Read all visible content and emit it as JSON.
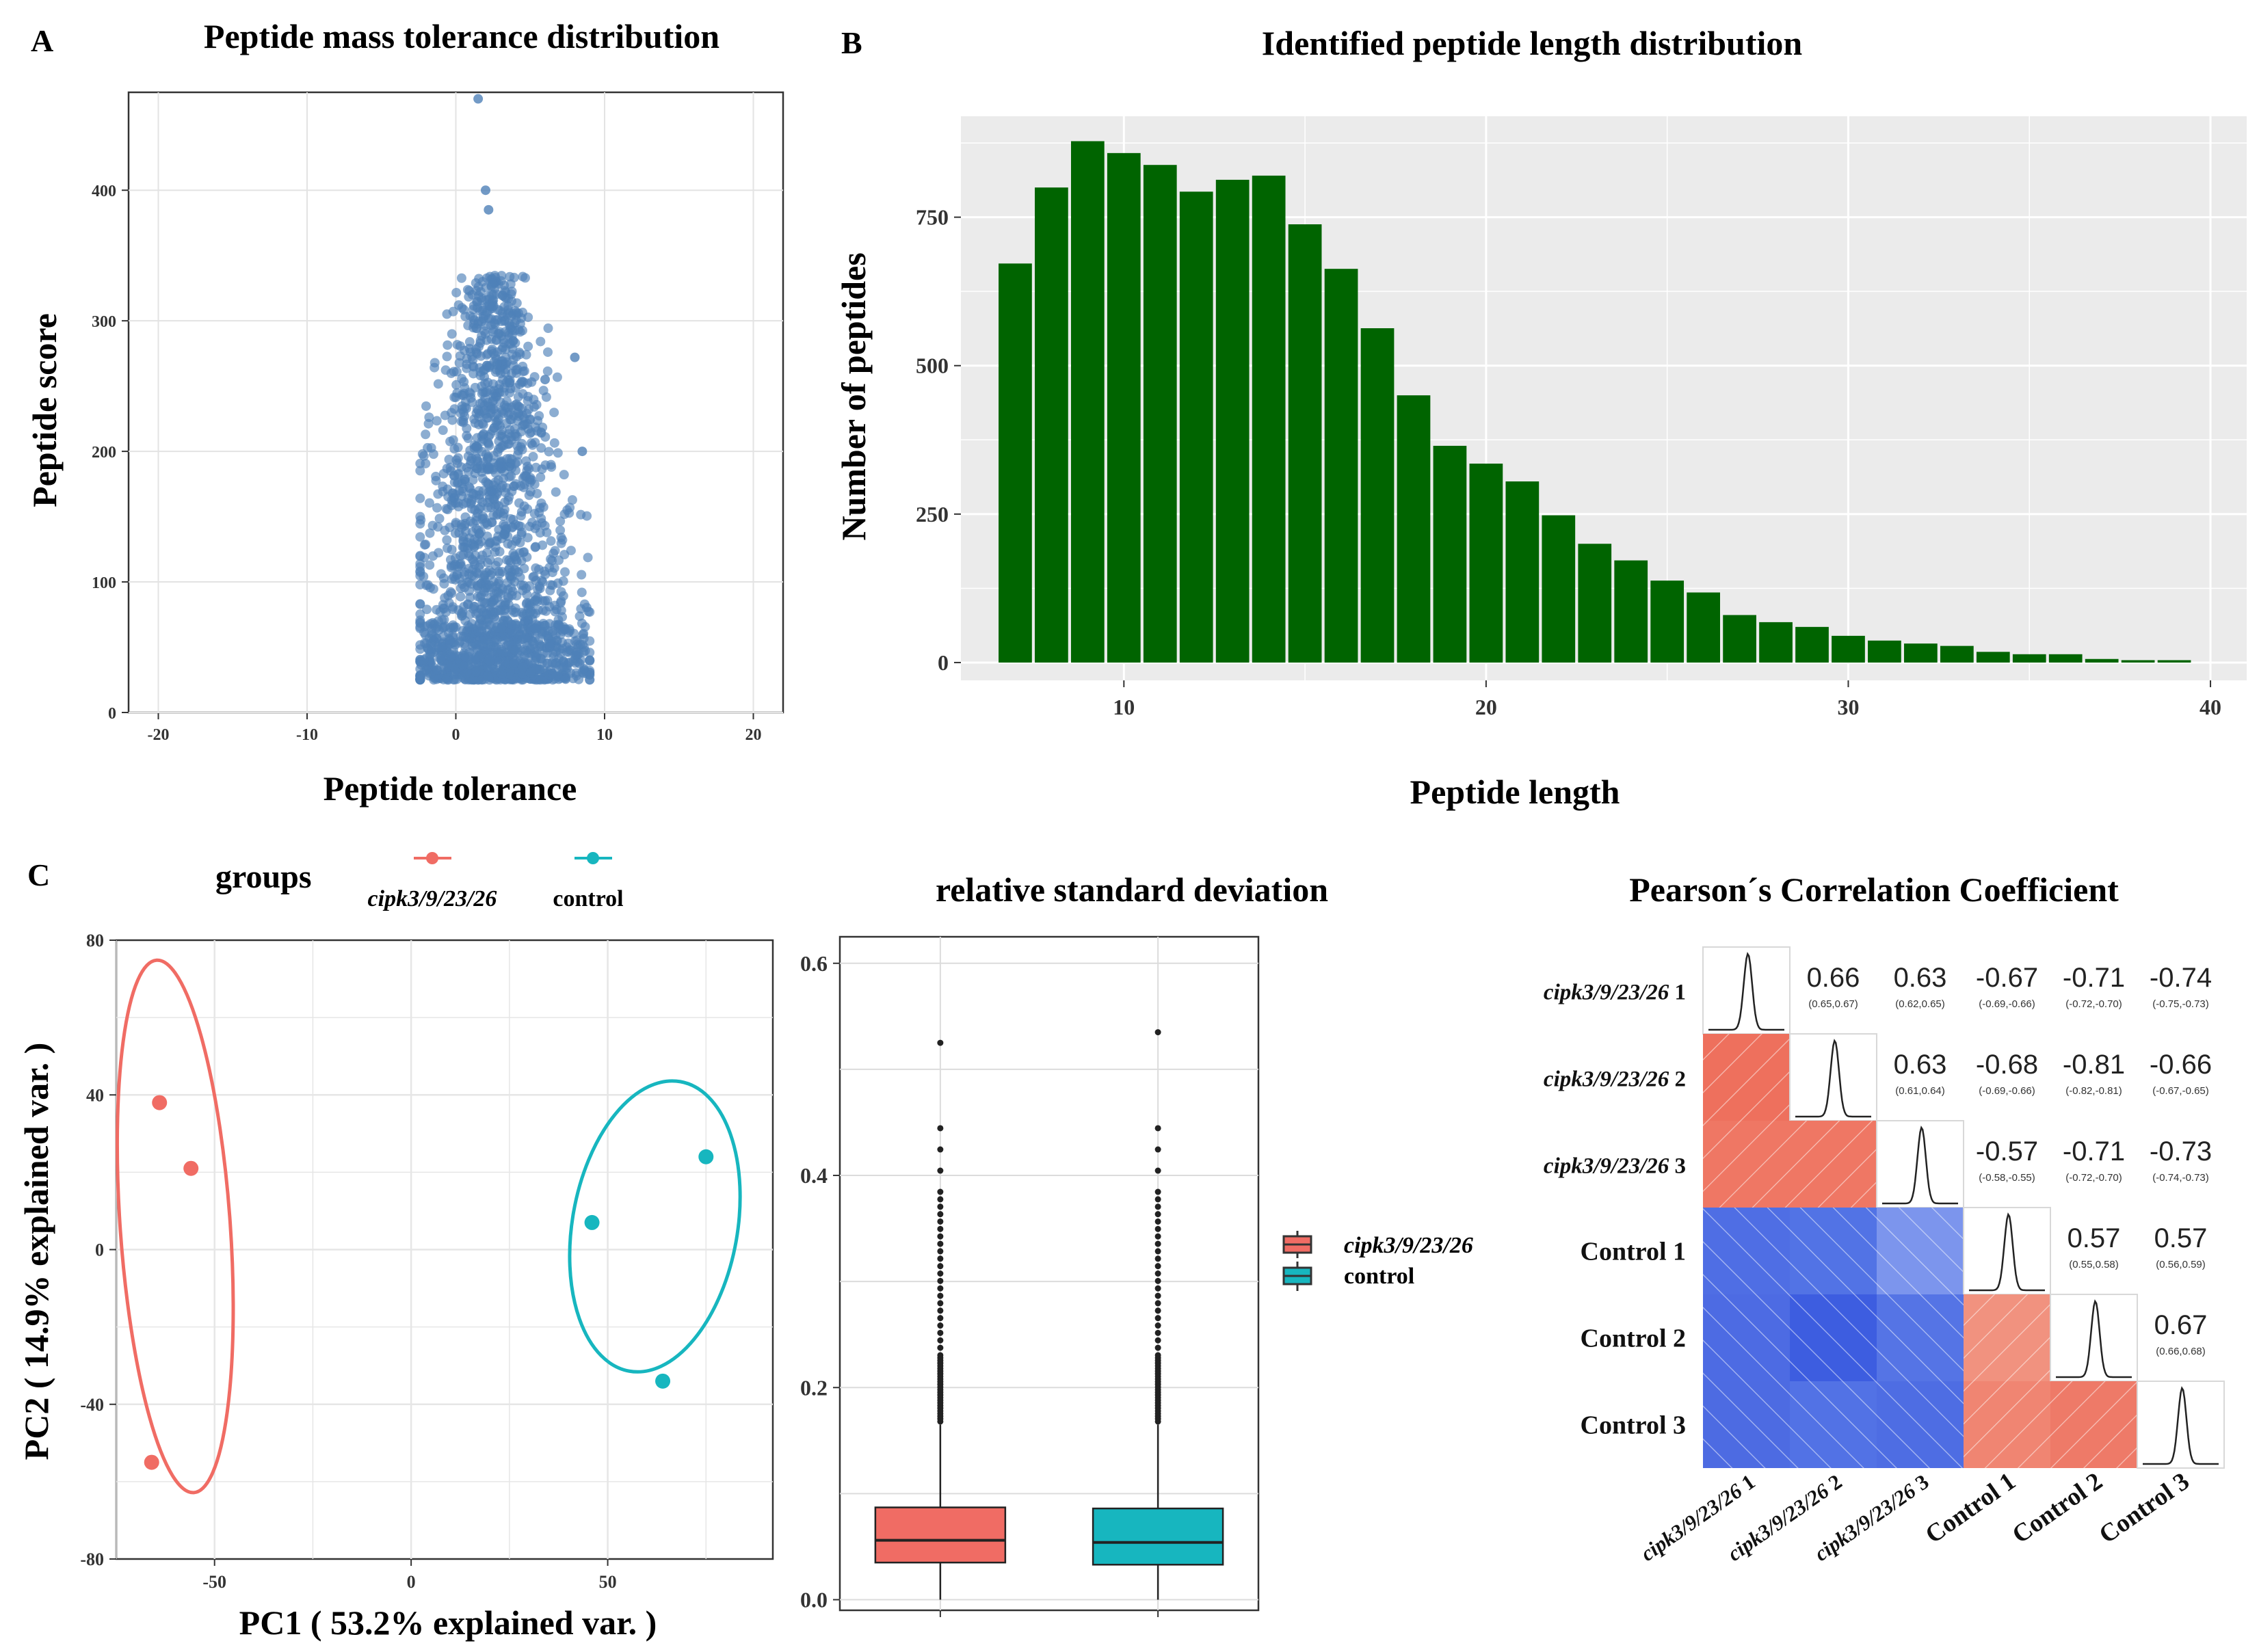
{
  "panels": {
    "A": {
      "letter": "A",
      "title": "Peptide mass tolerance distribution",
      "xlabel": "Peptide tolerance",
      "ylabel": "Peptide score"
    },
    "B": {
      "letter": "B",
      "title": "Identified peptide length distribution",
      "xlabel": "Peptide length",
      "ylabel": "Number of peptides"
    },
    "C": {
      "letter": "C",
      "legend_title": "groups",
      "legend_items": [
        "cipk3/9/23/26",
        "control"
      ],
      "xlabel": "PC1 ( 53.2% explained var. )",
      "ylabel": "PC2 ( 14.9% explained var. )"
    },
    "RSD": {
      "title": "relative standard deviation",
      "legend_items": [
        "cipk3/9/23/26",
        "control"
      ]
    },
    "corr": {
      "title": "Pearson´s Correlation Coefficient"
    }
  },
  "colors": {
    "scatter_point": "#4f81b8",
    "bar_fill": "#006400",
    "group_cipk": "#f06c64",
    "group_control": "#17b6bf",
    "corr_positive": "#ef6a54",
    "corr_negative": "#4a6be3"
  },
  "chart_data": [
    {
      "id": "A",
      "type": "scatter",
      "title": "Peptide mass tolerance distribution",
      "xlabel": "Peptide tolerance",
      "ylabel": "Peptide score",
      "xlim": [
        -22,
        22
      ],
      "ylim": [
        0,
        475
      ],
      "xticks": [
        -20,
        -10,
        0,
        10,
        20
      ],
      "yticks": [
        0,
        100,
        200,
        300,
        400
      ],
      "grid": true,
      "approx_center_x": 2.5,
      "approx_x_range": [
        -2.5,
        9
      ],
      "approx_y_range": [
        25,
        470
      ],
      "outliers": [
        [
          1.5,
          470
        ],
        [
          2,
          400
        ],
        [
          2.2,
          385
        ],
        [
          8,
          272
        ],
        [
          8.5,
          200
        ],
        [
          6,
          255
        ]
      ]
    },
    {
      "id": "B",
      "type": "bar",
      "title": "Identified peptide length distribution",
      "xlabel": "Peptide length",
      "ylabel": "Number of peptides",
      "x": [
        7,
        8,
        9,
        10,
        11,
        12,
        13,
        14,
        15,
        16,
        17,
        18,
        19,
        20,
        21,
        22,
        23,
        24,
        25,
        26,
        27,
        28,
        29,
        30,
        31,
        32,
        33,
        34,
        35,
        36,
        37,
        38,
        39
      ],
      "values": [
        672,
        800,
        878,
        858,
        838,
        793,
        813,
        820,
        738,
        663,
        563,
        450,
        365,
        335,
        305,
        248,
        200,
        172,
        138,
        118,
        80,
        68,
        60,
        45,
        37,
        32,
        28,
        18,
        14,
        14,
        6,
        4,
        4
      ],
      "xlim": [
        5.5,
        41
      ],
      "ylim": [
        -30,
        920
      ],
      "xticks": [
        10,
        20,
        30,
        40
      ],
      "yticks": [
        0,
        250,
        500,
        750
      ],
      "grid": true
    },
    {
      "id": "C",
      "type": "scatter",
      "xlabel": "PC1 ( 53.2% explained var. )",
      "ylabel": "PC2 ( 14.9% explained var. )",
      "xlim": [
        -75,
        92
      ],
      "ylim": [
        -80,
        80
      ],
      "xticks": [
        -50,
        0,
        50
      ],
      "yticks": [
        -80,
        -40,
        0,
        40,
        80
      ],
      "series": [
        {
          "name": "cipk3/9/23/26",
          "points": [
            [
              -64,
              38
            ],
            [
              -56,
              21
            ],
            [
              -66,
              -55
            ]
          ],
          "ellipse": {
            "cx": -60,
            "cy": 6,
            "rx": 14,
            "ry": 69,
            "angle_deg": -4
          }
        },
        {
          "name": "control",
          "points": [
            [
              46,
              7
            ],
            [
              75,
              24
            ],
            [
              64,
              -34
            ]
          ],
          "ellipse": {
            "cx": 62,
            "cy": 6,
            "rx": 21,
            "ry": 38,
            "angle_deg": 10
          }
        }
      ]
    },
    {
      "id": "RSD",
      "type": "box",
      "title": "relative standard deviation",
      "ylim": [
        -0.01,
        0.625
      ],
      "yticks": [
        0.0,
        0.2,
        0.4,
        0.6
      ],
      "boxes": [
        {
          "name": "cipk3/9/23/26",
          "q1": 0.035,
          "median": 0.056,
          "q3": 0.087,
          "whisker_low": 0.0,
          "whisker_high": 0.165,
          "outlier_max": 0.525
        },
        {
          "name": "control",
          "q1": 0.033,
          "median": 0.054,
          "q3": 0.086,
          "whisker_low": 0.0,
          "whisker_high": 0.165,
          "outlier_max": 0.535
        }
      ]
    },
    {
      "id": "corr",
      "type": "heatmap",
      "title": "Pearson´s Correlation Coefficient",
      "labels": [
        "cipk3/9/23/26 1",
        "cipk3/9/23/26 2",
        "cipk3/9/23/26 3",
        "Control 1",
        "Control 2",
        "Control 3"
      ],
      "upper": [
        {
          "i": 0,
          "j": 1,
          "r": "0.66",
          "ci": "(0.65,0.67)"
        },
        {
          "i": 0,
          "j": 2,
          "r": "0.63",
          "ci": "(0.62,0.65)"
        },
        {
          "i": 0,
          "j": 3,
          "r": "-0.67",
          "ci": "(-0.69,-0.66)"
        },
        {
          "i": 0,
          "j": 4,
          "r": "-0.71",
          "ci": "(-0.72,-0.70)"
        },
        {
          "i": 0,
          "j": 5,
          "r": "-0.74",
          "ci": "(-0.75,-0.73)"
        },
        {
          "i": 1,
          "j": 2,
          "r": "0.63",
          "ci": "(0.61,0.64)"
        },
        {
          "i": 1,
          "j": 3,
          "r": "-0.68",
          "ci": "(-0.69,-0.66)"
        },
        {
          "i": 1,
          "j": 4,
          "r": "-0.81",
          "ci": "(-0.82,-0.81)"
        },
        {
          "i": 1,
          "j": 5,
          "r": "-0.66",
          "ci": "(-0.67,-0.65)"
        },
        {
          "i": 2,
          "j": 3,
          "r": "-0.57",
          "ci": "(-0.58,-0.55)"
        },
        {
          "i": 2,
          "j": 4,
          "r": "-0.71",
          "ci": "(-0.72,-0.70)"
        },
        {
          "i": 2,
          "j": 5,
          "r": "-0.73",
          "ci": "(-0.74,-0.73)"
        },
        {
          "i": 3,
          "j": 4,
          "r": "0.57",
          "ci": "(0.55,0.58)"
        },
        {
          "i": 3,
          "j": 5,
          "r": "0.57",
          "ci": "(0.56,0.59)"
        },
        {
          "i": 4,
          "j": 5,
          "r": "0.67",
          "ci": "(0.66,0.68)"
        }
      ]
    }
  ]
}
